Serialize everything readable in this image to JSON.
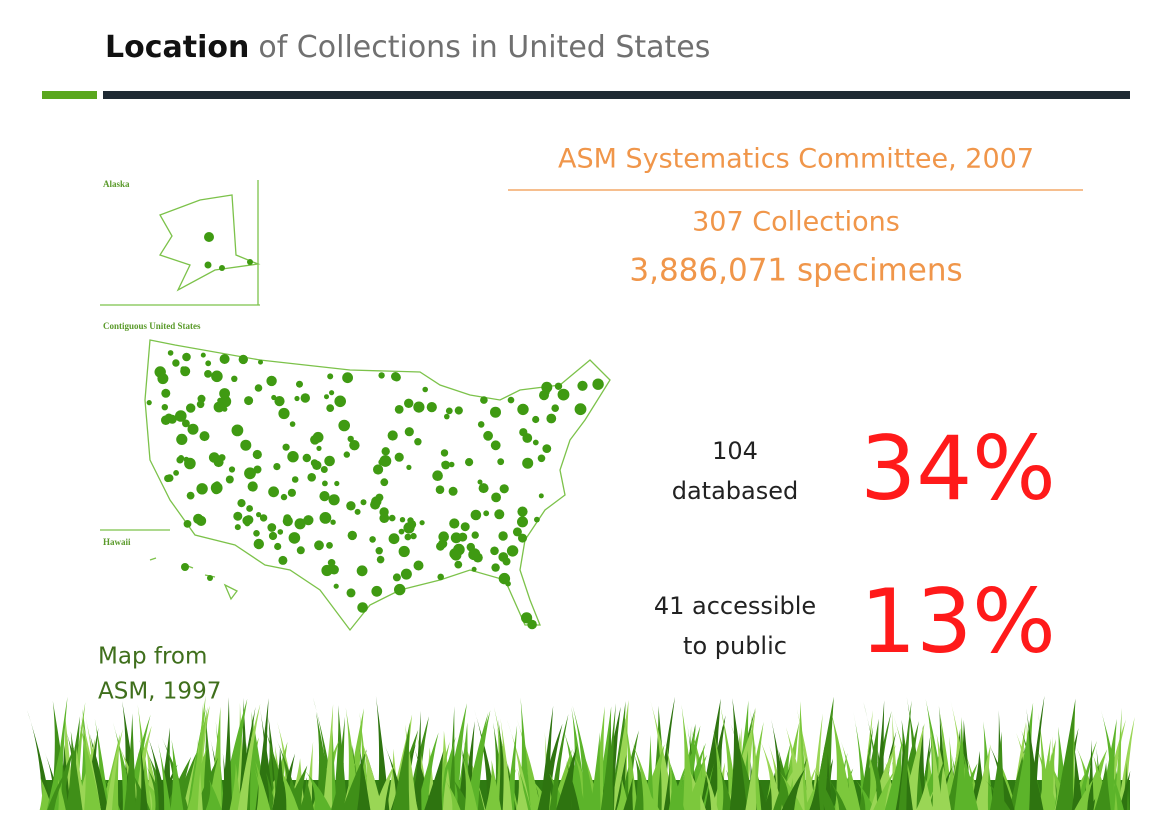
{
  "header": {
    "title_bold": "Location",
    "title_rest": "of Collections in United States"
  },
  "map": {
    "alaska": "Alaska",
    "contiguous": "Contiguous United States",
    "hawaii": "Hawaii",
    "credit": [
      "Map from",
      "ASM, 1997"
    ]
  },
  "source": "ASM Systematics Committee, 2007",
  "totals": [
    "307 Collections",
    "3,886,071 specimens"
  ],
  "stats": [
    {
      "label": [
        "104",
        "databased"
      ],
      "percent": "34%"
    },
    {
      "label": [
        "41 accessible",
        "to public"
      ],
      "percent": "13%"
    }
  ]
}
